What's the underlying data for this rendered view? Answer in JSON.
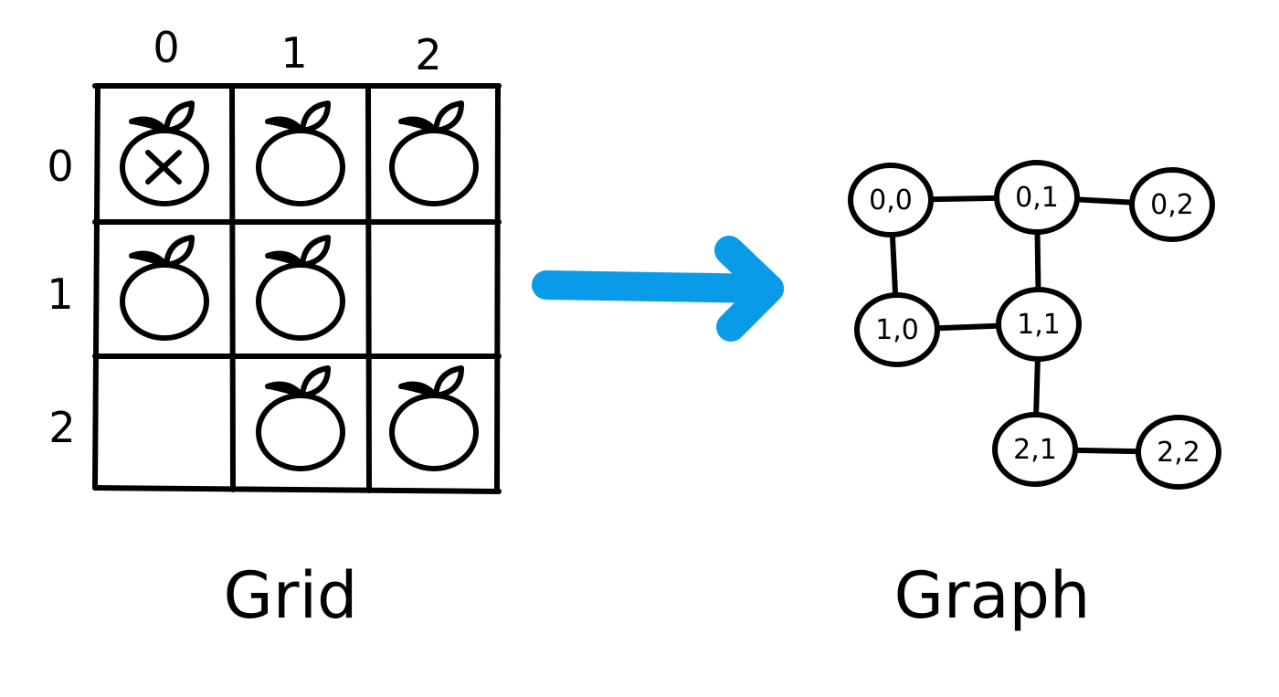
{
  "grid": {
    "column_labels": [
      "0",
      "1",
      "2"
    ],
    "row_labels": [
      "0",
      "1",
      "2"
    ],
    "cells": [
      [
        {
          "orange": true,
          "crossed": true
        },
        {
          "orange": true,
          "crossed": false
        },
        {
          "orange": true,
          "crossed": false
        }
      ],
      [
        {
          "orange": true,
          "crossed": false
        },
        {
          "orange": true,
          "crossed": false
        },
        {
          "orange": false,
          "crossed": false
        }
      ],
      [
        {
          "orange": false,
          "crossed": false
        },
        {
          "orange": true,
          "crossed": false
        },
        {
          "orange": true,
          "crossed": false
        }
      ]
    ],
    "caption": "Grid"
  },
  "arrow": {
    "color": "#0a9be8"
  },
  "graph": {
    "nodes": [
      {
        "id": "00",
        "label": "0,0"
      },
      {
        "id": "01",
        "label": "0,1"
      },
      {
        "id": "02",
        "label": "0,2"
      },
      {
        "id": "10",
        "label": "1,0"
      },
      {
        "id": "11",
        "label": "1,1"
      },
      {
        "id": "21",
        "label": "2,1"
      },
      {
        "id": "22",
        "label": "2,2"
      }
    ],
    "edges": [
      [
        "00",
        "01"
      ],
      [
        "01",
        "02"
      ],
      [
        "00",
        "10"
      ],
      [
        "01",
        "11"
      ],
      [
        "10",
        "11"
      ],
      [
        "11",
        "21"
      ],
      [
        "21",
        "22"
      ]
    ],
    "caption": "Graph"
  }
}
